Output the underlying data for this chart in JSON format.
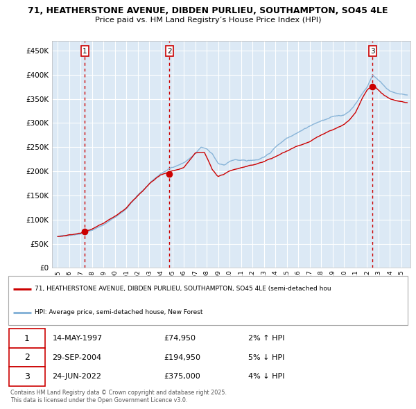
{
  "title": "71, HEATHERSTONE AVENUE, DIBDEN PURLIEU, SOUTHAMPTON, SO45 4LE",
  "subtitle": "Price paid vs. HM Land Registry’s House Price Index (HPI)",
  "plot_bg_color": "#dce9f5",
  "grid_color": "#ffffff",
  "property_line_color": "#cc0000",
  "hpi_line_color": "#88b4d8",
  "sale_marker_color": "#cc0000",
  "dashed_line_color": "#cc0000",
  "sale_years": [
    1997.37,
    2004.75,
    2022.48
  ],
  "sale_prices": [
    74950,
    194950,
    375000
  ],
  "sale_labels": [
    "1",
    "2",
    "3"
  ],
  "sale_info": [
    {
      "label": "1",
      "date": "14-MAY-1997",
      "price": "£74,950",
      "rel": "2% ↑ HPI"
    },
    {
      "label": "2",
      "date": "29-SEP-2004",
      "price": "£194,950",
      "rel": "5% ↓ HPI"
    },
    {
      "label": "3",
      "date": "24-JUN-2022",
      "price": "£375,000",
      "rel": "4% ↓ HPI"
    }
  ],
  "legend_property": "71, HEATHERSTONE AVENUE, DIBDEN PURLIEU, SOUTHAMPTON, SO45 4LE (semi-detached hou",
  "legend_hpi": "HPI: Average price, semi-detached house, New Forest",
  "footer_line1": "Contains HM Land Registry data © Crown copyright and database right 2025.",
  "footer_line2": "This data is licensed under the Open Government Licence v3.0.",
  "yticks": [
    0,
    50000,
    100000,
    150000,
    200000,
    250000,
    300000,
    350000,
    400000,
    450000
  ],
  "ytick_labels": [
    "£0",
    "£50K",
    "£100K",
    "£150K",
    "£200K",
    "£250K",
    "£300K",
    "£350K",
    "£400K",
    "£450K"
  ],
  "ylim": [
    0,
    470000
  ],
  "xlim": [
    1994.5,
    2025.8
  ],
  "xtick_years": [
    1995,
    1996,
    1997,
    1998,
    1999,
    2000,
    2001,
    2002,
    2003,
    2004,
    2005,
    2006,
    2007,
    2008,
    2009,
    2010,
    2011,
    2012,
    2013,
    2014,
    2015,
    2016,
    2017,
    2018,
    2019,
    2020,
    2021,
    2022,
    2023,
    2024,
    2025
  ]
}
